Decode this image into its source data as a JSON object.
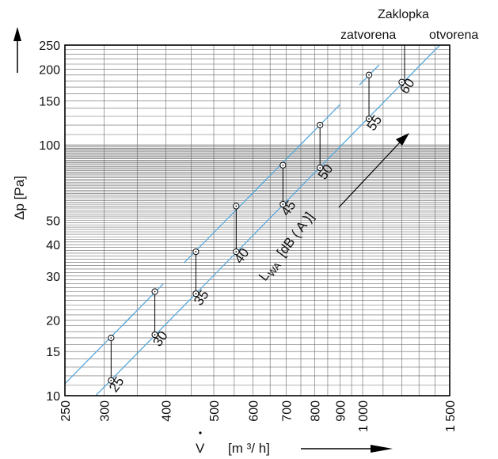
{
  "chart_data": {
    "type": "line",
    "x_axis": {
      "scale": "log",
      "range": [
        250,
        1500
      ],
      "tick_values": [
        250,
        300,
        400,
        500,
        600,
        700,
        800,
        900,
        1000,
        1500
      ],
      "tick_labels": [
        "250",
        "300",
        "400",
        "500",
        "600",
        "700",
        "800",
        "900",
        "1 000",
        "1 500"
      ],
      "label_symbol": "V",
      "label_units": "[m ³/ h]"
    },
    "y_axis": {
      "scale": "log",
      "range": [
        10,
        250
      ],
      "tick_values": [
        10,
        15,
        20,
        30,
        40,
        50,
        100,
        150,
        200,
        250
      ],
      "tick_labels": [
        "10",
        "15",
        "20",
        "30",
        "40",
        "50",
        "100",
        "150",
        "200",
        "250"
      ],
      "label": "Δp [Pa]"
    },
    "grid": true,
    "series": [
      {
        "name": "zatvorena",
        "points": [
          [
            310,
            17
          ],
          [
            380,
            26
          ],
          [
            460,
            37.5
          ],
          [
            555,
            57
          ],
          [
            690,
            83
          ],
          [
            820,
            120
          ],
          [
            1030,
            190
          ]
        ]
      },
      {
        "name": "otvorena",
        "points": [
          [
            310,
            11.5
          ],
          [
            380,
            17.5
          ],
          [
            460,
            25.5
          ],
          [
            555,
            37.5
          ],
          [
            690,
            58
          ],
          [
            820,
            81
          ],
          [
            1030,
            127
          ],
          [
            1200,
            178
          ]
        ]
      }
    ],
    "sound_levels": [
      {
        "value": "25",
        "x": 310
      },
      {
        "value": "30",
        "x": 380
      },
      {
        "value": "35",
        "x": 460
      },
      {
        "value": "40",
        "x": 555
      },
      {
        "value": "45",
        "x": 690
      },
      {
        "value": "50",
        "x": 820
      },
      {
        "value": "55",
        "x": 1030
      },
      {
        "value": "60",
        "x": 1200
      }
    ],
    "sound_label_main": "L",
    "sound_label_sub": "WA",
    "sound_label_unit": "[dB ( A )]",
    "annotation_title": "Zaklopka",
    "annotation_closed": "zatvorena",
    "annotation_open": "otvorena",
    "colors": {
      "line": "#5aa9dc",
      "grid": "#666666",
      "axis": "#000000"
    }
  }
}
